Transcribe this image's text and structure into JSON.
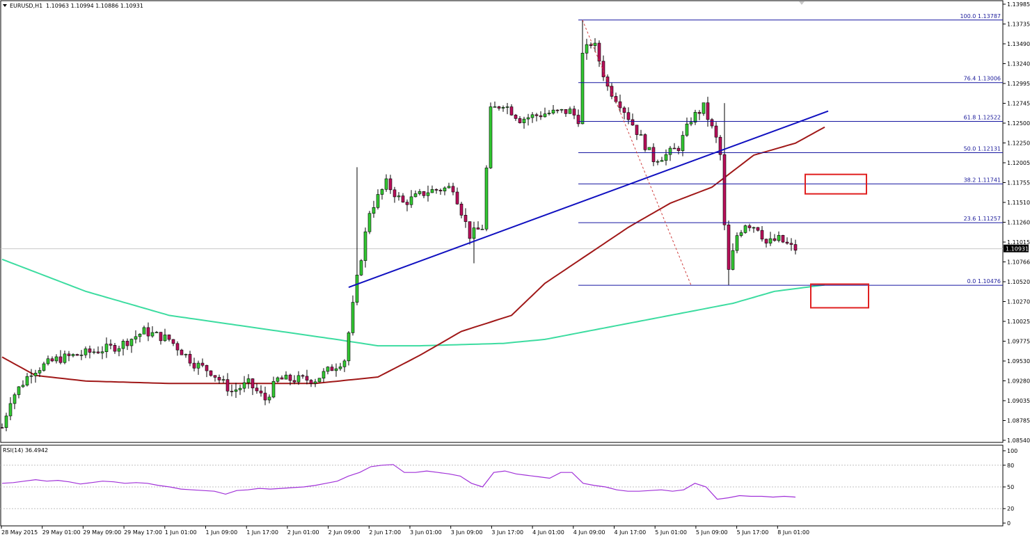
{
  "header": {
    "symbol_label": "EURUSD,H1",
    "ohlc_label": "1.10963 1.10994 1.10886 1.10931"
  },
  "rsi_header": "RSI(14) 36.4942",
  "chart_data": {
    "type": "candlestick",
    "title": "EURUSD,H1",
    "y_range": [
      1.0854,
      1.13985
    ],
    "price_ticks": [
      "1.13985",
      "1.13735",
      "1.13490",
      "1.13240",
      "1.12995",
      "1.12745",
      "1.12500",
      "1.12250",
      "1.12005",
      "1.11755",
      "1.11510",
      "1.11260",
      "1.11015",
      "1.10766",
      "1.10520",
      "1.10270",
      "1.10025",
      "1.09775",
      "1.09530",
      "1.09280",
      "1.09035",
      "1.08785",
      "1.08540"
    ],
    "current_price": "1.10931",
    "fibonacci": [
      {
        "level": "100.0",
        "price": 1.13787,
        "label": "100.0 1.13787"
      },
      {
        "level": "76.4",
        "price": 1.13006,
        "label": "76.4 1.13006"
      },
      {
        "level": "61.8",
        "price": 1.12522,
        "label": "61.8 1.12522"
      },
      {
        "level": "50.0",
        "price": 1.12131,
        "label": "50.0 1.12131"
      },
      {
        "level": "38.2",
        "price": 1.11741,
        "label": "38.2 1.11741"
      },
      {
        "level": "23.6",
        "price": 1.11257,
        "label": "23.6 1.11257"
      },
      {
        "level": "0.0",
        "price": 1.10476,
        "label": "0.0 1.10476"
      }
    ],
    "time_labels": [
      "28 May 2015",
      "29 May 01:00",
      "29 May 09:00",
      "29 May 17:00",
      "1 Jun 01:00",
      "1 Jun 09:00",
      "1 Jun 17:00",
      "2 Jun 01:00",
      "2 Jun 09:00",
      "2 Jun 17:00",
      "3 Jun 01:00",
      "3 Jun 09:00",
      "3 Jun 17:00",
      "4 Jun 01:00",
      "4 Jun 09:00",
      "4 Jun 17:00",
      "5 Jun 01:00",
      "5 Jun 09:00",
      "5 Jun 17:00",
      "8 Jun 01:00"
    ],
    "anchors": [
      {
        "x": 0,
        "p": 1.087
      },
      {
        "x": 2,
        "p": 1.0905
      },
      {
        "x": 7,
        "p": 1.094
      },
      {
        "x": 13,
        "p": 1.0955
      },
      {
        "x": 22,
        "p": 1.0965
      },
      {
        "x": 28,
        "p": 1.0972
      },
      {
        "x": 34,
        "p": 1.099
      },
      {
        "x": 40,
        "p": 1.098
      },
      {
        "x": 46,
        "p": 1.095
      },
      {
        "x": 50,
        "p": 1.094
      },
      {
        "x": 55,
        "p": 1.0915
      },
      {
        "x": 59,
        "p": 1.0925
      },
      {
        "x": 63,
        "p": 1.0905
      },
      {
        "x": 66,
        "p": 1.093
      },
      {
        "x": 75,
        "p": 1.093
      },
      {
        "x": 82,
        "p": 1.0955
      },
      {
        "x": 85,
        "p": 1.1055
      },
      {
        "x": 88,
        "p": 1.114
      },
      {
        "x": 92,
        "p": 1.1175
      },
      {
        "x": 96,
        "p": 1.115
      },
      {
        "x": 102,
        "p": 1.1165
      },
      {
        "x": 108,
        "p": 1.117
      },
      {
        "x": 112,
        "p": 1.111
      },
      {
        "x": 115,
        "p": 1.112
      },
      {
        "x": 117,
        "p": 1.1265
      },
      {
        "x": 120,
        "p": 1.1275
      },
      {
        "x": 124,
        "p": 1.1255
      },
      {
        "x": 130,
        "p": 1.1262
      },
      {
        "x": 136,
        "p": 1.1265
      },
      {
        "x": 138,
        "p": 1.1255
      },
      {
        "x": 139,
        "p": 1.1335
      },
      {
        "x": 141,
        "p": 1.135
      },
      {
        "x": 142,
        "p": 1.1345
      },
      {
        "x": 145,
        "p": 1.1295
      },
      {
        "x": 148,
        "p": 1.1275
      },
      {
        "x": 152,
        "p": 1.124
      },
      {
        "x": 156,
        "p": 1.1205
      },
      {
        "x": 159,
        "p": 1.121
      },
      {
        "x": 162,
        "p": 1.122
      },
      {
        "x": 165,
        "p": 1.1255
      },
      {
        "x": 168,
        "p": 1.127
      },
      {
        "x": 171,
        "p": 1.123
      },
      {
        "x": 172,
        "p": 1.121
      },
      {
        "x": 173,
        "p": 1.112
      },
      {
        "x": 174,
        "p": 1.1065
      },
      {
        "x": 176,
        "p": 1.111
      },
      {
        "x": 178,
        "p": 1.1125
      },
      {
        "x": 181,
        "p": 1.112
      },
      {
        "x": 183,
        "p": 1.11
      },
      {
        "x": 186,
        "p": 1.1105
      },
      {
        "x": 189,
        "p": 1.1095
      },
      {
        "x": 190,
        "p": 1.1093
      }
    ],
    "ma_green": [
      {
        "x": 0,
        "p": 1.108
      },
      {
        "x": 20,
        "p": 1.104
      },
      {
        "x": 40,
        "p": 1.101
      },
      {
        "x": 60,
        "p": 1.0995
      },
      {
        "x": 80,
        "p": 1.098
      },
      {
        "x": 90,
        "p": 1.0972
      },
      {
        "x": 100,
        "p": 1.0972
      },
      {
        "x": 120,
        "p": 1.0975
      },
      {
        "x": 130,
        "p": 1.098
      },
      {
        "x": 145,
        "p": 1.0995
      },
      {
        "x": 160,
        "p": 1.101
      },
      {
        "x": 175,
        "p": 1.1025
      },
      {
        "x": 185,
        "p": 1.104
      },
      {
        "x": 197,
        "p": 1.1048
      }
    ],
    "ma_red": [
      {
        "x": 0,
        "p": 1.0958
      },
      {
        "x": 8,
        "p": 1.0935
      },
      {
        "x": 20,
        "p": 1.0928
      },
      {
        "x": 40,
        "p": 1.0925
      },
      {
        "x": 60,
        "p": 1.0925
      },
      {
        "x": 75,
        "p": 1.0925
      },
      {
        "x": 90,
        "p": 1.0933
      },
      {
        "x": 100,
        "p": 1.096
      },
      {
        "x": 110,
        "p": 1.099
      },
      {
        "x": 122,
        "p": 1.101
      },
      {
        "x": 130,
        "p": 1.105
      },
      {
        "x": 140,
        "p": 1.1085
      },
      {
        "x": 150,
        "p": 1.112
      },
      {
        "x": 160,
        "p": 1.115
      },
      {
        "x": 170,
        "p": 1.117
      },
      {
        "x": 180,
        "p": 1.121
      },
      {
        "x": 190,
        "p": 1.1225
      },
      {
        "x": 197,
        "p": 1.1245
      }
    ],
    "rsi_levels": [
      "100",
      "80",
      "50",
      "20",
      "0"
    ],
    "rsi": [
      55,
      56,
      58,
      60,
      58,
      59,
      57,
      54,
      56,
      58,
      57,
      55,
      56,
      55,
      52,
      50,
      47,
      46,
      45,
      44,
      40,
      45,
      46,
      48,
      47,
      48,
      49,
      50,
      52,
      55,
      58,
      65,
      70,
      78,
      80,
      81,
      70,
      70,
      72,
      70,
      68,
      65,
      55,
      50,
      70,
      72,
      68,
      66,
      64,
      62,
      70,
      70,
      55,
      52,
      50,
      46,
      44,
      44,
      45,
      46,
      44,
      46,
      55,
      50,
      33,
      35,
      38,
      37,
      37,
      36,
      37,
      36
    ],
    "annotations": [
      "blue-trendline",
      "red-dotted-swing",
      "red-box-upper",
      "red-box-lower"
    ]
  },
  "colors": {
    "bull": "#32c832",
    "bear": "#b80f5a",
    "ma_green": "#3cdca0",
    "ma_red": "#a01818",
    "fib": "#1414a0",
    "trend": "#1010c0",
    "rsi": "#a030d8"
  }
}
